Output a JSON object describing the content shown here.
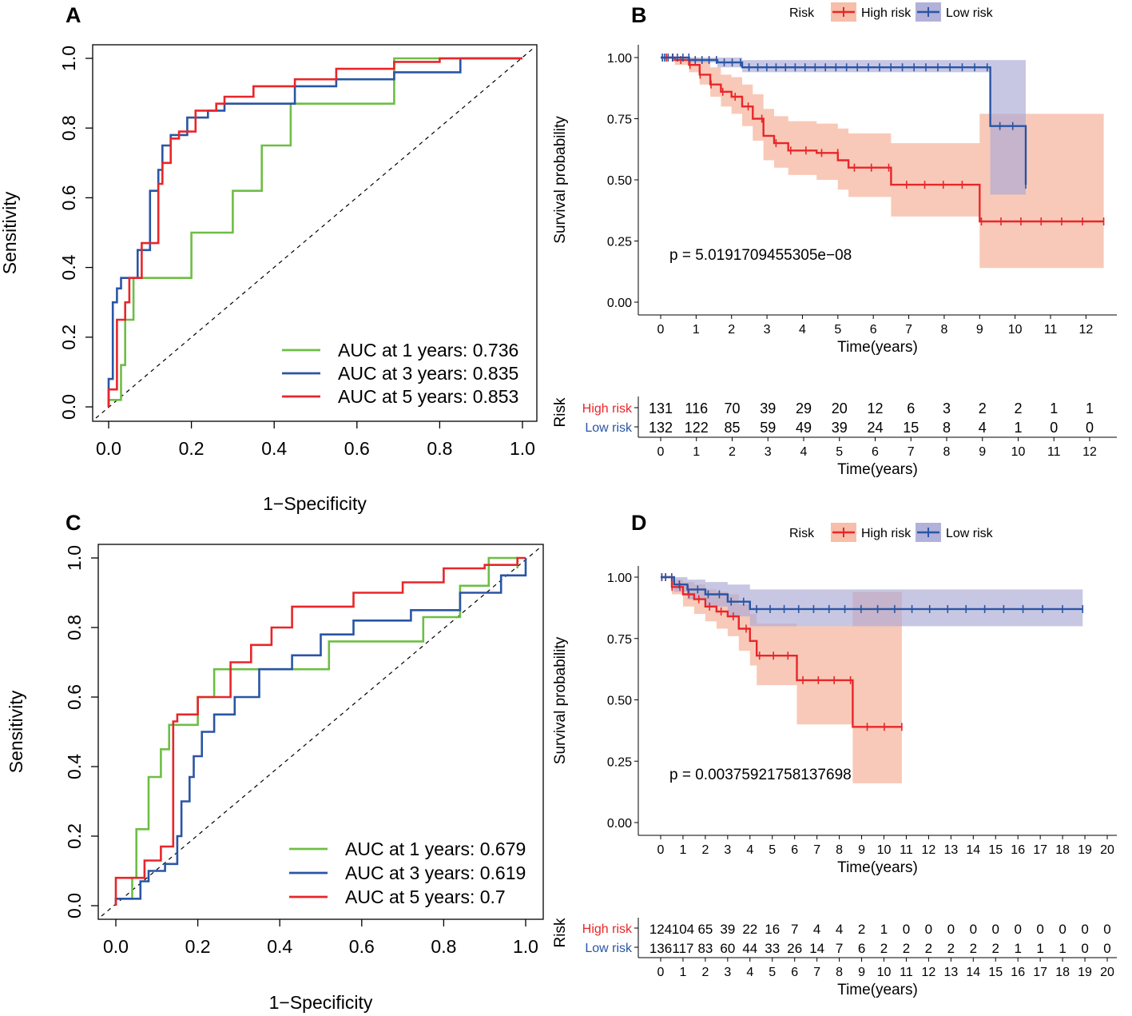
{
  "colors": {
    "green": "#6DBE45",
    "blue": "#2A55A4",
    "red": "#E8262A",
    "red_band": "#F6B7A0",
    "blue_band": "#A9A9D6",
    "black": "#000000"
  },
  "chart_data": [
    {
      "panel": "A",
      "type": "line",
      "xlabel": "1−Specificity",
      "ylabel": "Sensitivity",
      "xlim": [
        0,
        1
      ],
      "ylim": [
        0,
        1
      ],
      "xticks": [
        "0.0",
        "0.2",
        "0.4",
        "0.6",
        "0.8",
        "1.0"
      ],
      "yticks": [
        "0.0",
        "0.2",
        "0.4",
        "0.6",
        "0.8",
        "1.0"
      ],
      "legend_position": "bottom-right",
      "series": [
        {
          "name": "AUC at 1 years: 0.736",
          "color": "green",
          "x": [
            0,
            0,
            0.03,
            0.03,
            0.04,
            0.04,
            0.06,
            0.06,
            0.2,
            0.2,
            0.3,
            0.3,
            0.37,
            0.37,
            0.44,
            0.44,
            0.69,
            0.69,
            0.79,
            0.79,
            1
          ],
          "y": [
            0,
            0.02,
            0.02,
            0.12,
            0.12,
            0.25,
            0.25,
            0.37,
            0.37,
            0.5,
            0.5,
            0.62,
            0.62,
            0.75,
            0.75,
            0.87,
            0.87,
            1,
            1,
            1,
            1
          ]
        },
        {
          "name": "AUC at 3 years: 0.835",
          "color": "blue",
          "x": [
            0,
            0,
            0.01,
            0.01,
            0.02,
            0.02,
            0.03,
            0.03,
            0.07,
            0.07,
            0.1,
            0.1,
            0.12,
            0.12,
            0.13,
            0.13,
            0.15,
            0.15,
            0.19,
            0.19,
            0.24,
            0.24,
            0.28,
            0.28,
            0.33,
            0.33,
            0.45,
            0.45,
            0.55,
            0.55,
            0.69,
            0.69,
            0.85,
            0.85,
            1
          ],
          "y": [
            0,
            0.08,
            0.08,
            0.3,
            0.3,
            0.34,
            0.34,
            0.37,
            0.37,
            0.45,
            0.45,
            0.62,
            0.62,
            0.68,
            0.68,
            0.75,
            0.75,
            0.78,
            0.78,
            0.83,
            0.83,
            0.85,
            0.85,
            0.87,
            0.87,
            0.87,
            0.87,
            0.92,
            0.92,
            0.94,
            0.94,
            0.96,
            0.96,
            1,
            1
          ]
        },
        {
          "name": "AUC at 5 years: 0.853",
          "color": "red",
          "x": [
            0,
            0,
            0.02,
            0.02,
            0.04,
            0.04,
            0.05,
            0.05,
            0.08,
            0.08,
            0.12,
            0.12,
            0.13,
            0.13,
            0.15,
            0.15,
            0.17,
            0.17,
            0.21,
            0.21,
            0.26,
            0.26,
            0.28,
            0.28,
            0.35,
            0.35,
            0.45,
            0.45,
            0.55,
            0.55,
            0.69,
            0.69,
            0.8,
            0.8,
            1
          ],
          "y": [
            0,
            0.05,
            0.05,
            0.25,
            0.25,
            0.3,
            0.3,
            0.37,
            0.37,
            0.47,
            0.47,
            0.64,
            0.64,
            0.7,
            0.7,
            0.77,
            0.77,
            0.79,
            0.79,
            0.85,
            0.85,
            0.87,
            0.87,
            0.89,
            0.89,
            0.92,
            0.92,
            0.94,
            0.94,
            0.97,
            0.97,
            0.99,
            0.99,
            1,
            1
          ]
        }
      ]
    },
    {
      "panel": "B",
      "type": "line",
      "xlabel": "Time(years)",
      "ylabel": "Survival probability",
      "xlim": [
        0,
        12.6
      ],
      "ylim": [
        0,
        1
      ],
      "xticks": [
        "0",
        "1",
        "2",
        "3",
        "4",
        "5",
        "6",
        "7",
        "8",
        "9",
        "10",
        "11",
        "12"
      ],
      "yticks": [
        "0.00",
        "0.25",
        "0.50",
        "0.75",
        "1.00"
      ],
      "legend_title": "Risk",
      "legend_position": "top",
      "pvalue": "p = 5.0191709455305e−08",
      "series": [
        {
          "name": "High risk",
          "color": "red",
          "x": [
            0,
            0.4,
            0.8,
            1.1,
            1.4,
            1.7,
            2,
            2.3,
            2.6,
            2.9,
            3.2,
            3.6,
            4.4,
            5,
            5.3,
            6.5,
            9,
            12.5
          ],
          "y": [
            1,
            0.99,
            0.97,
            0.93,
            0.89,
            0.86,
            0.84,
            0.8,
            0.75,
            0.68,
            0.65,
            0.62,
            0.61,
            0.58,
            0.55,
            0.48,
            0.33,
            0.33
          ],
          "lower": [
            1,
            0.97,
            0.94,
            0.89,
            0.84,
            0.8,
            0.77,
            0.72,
            0.66,
            0.58,
            0.55,
            0.52,
            0.5,
            0.46,
            0.43,
            0.35,
            0.14,
            0.14
          ],
          "upper": [
            1,
            1,
            1,
            0.99,
            0.96,
            0.93,
            0.92,
            0.89,
            0.85,
            0.79,
            0.76,
            0.74,
            0.73,
            0.71,
            0.69,
            0.65,
            0.77,
            0.77
          ]
        },
        {
          "name": "Low risk",
          "color": "blue",
          "x": [
            0,
            0.8,
            1.6,
            2.3,
            9.1,
            9.3,
            10.3
          ],
          "y": [
            1,
            0.99,
            0.98,
            0.96,
            0.96,
            0.72,
            0.48
          ],
          "lower": [
            1,
            0.98,
            0.96,
            0.94,
            0.94,
            0.44,
            0.18
          ],
          "upper": [
            1,
            1,
            1,
            0.99,
            0.99,
            0.99,
            0.99
          ]
        }
      ]
    },
    {
      "panel": "B-risktable",
      "type": "table",
      "title": "Risk",
      "xlabel": "Time(years)",
      "xticks": [
        "0",
        "1",
        "2",
        "3",
        "4",
        "5",
        "6",
        "7",
        "8",
        "9",
        "10",
        "11",
        "12"
      ],
      "rows": [
        {
          "name": "High risk",
          "color": "red",
          "values": [
            "131",
            "116",
            "70",
            "39",
            "29",
            "20",
            "12",
            "6",
            "3",
            "2",
            "2",
            "1",
            "1"
          ]
        },
        {
          "name": "Low risk",
          "color": "blue",
          "values": [
            "132",
            "122",
            "85",
            "59",
            "49",
            "39",
            "24",
            "15",
            "8",
            "4",
            "1",
            "0",
            "0"
          ]
        }
      ]
    },
    {
      "panel": "C",
      "type": "line",
      "xlabel": "1−Specificity",
      "ylabel": "Sensitivity",
      "xlim": [
        0,
        1
      ],
      "ylim": [
        0,
        1
      ],
      "xticks": [
        "0.0",
        "0.2",
        "0.4",
        "0.6",
        "0.8",
        "1.0"
      ],
      "yticks": [
        "0.0",
        "0.2",
        "0.4",
        "0.6",
        "0.8",
        "1.0"
      ],
      "legend_position": "bottom-right",
      "series": [
        {
          "name": "AUC at 1 years: 0.679",
          "color": "green",
          "x": [
            0,
            0,
            0.04,
            0.04,
            0.05,
            0.05,
            0.08,
            0.08,
            0.11,
            0.11,
            0.13,
            0.13,
            0.2,
            0.2,
            0.24,
            0.24,
            0.52,
            0.52,
            0.75,
            0.75,
            0.84,
            0.84,
            0.91,
            0.91,
            0.98,
            0.98
          ],
          "y": [
            0,
            0.02,
            0.02,
            0.08,
            0.08,
            0.22,
            0.22,
            0.37,
            0.37,
            0.45,
            0.45,
            0.52,
            0.52,
            0.6,
            0.6,
            0.68,
            0.68,
            0.76,
            0.76,
            0.83,
            0.83,
            0.92,
            0.92,
            1,
            1,
            0.97
          ]
        },
        {
          "name": "AUC at 3 years: 0.619",
          "color": "blue",
          "x": [
            0,
            0,
            0.06,
            0.06,
            0.08,
            0.08,
            0.12,
            0.12,
            0.15,
            0.15,
            0.16,
            0.16,
            0.18,
            0.18,
            0.19,
            0.19,
            0.21,
            0.21,
            0.24,
            0.24,
            0.29,
            0.29,
            0.35,
            0.35,
            0.43,
            0.43,
            0.5,
            0.5,
            0.58,
            0.58,
            0.72,
            0.72,
            0.84,
            0.84,
            0.94,
            0.94,
            1,
            1
          ],
          "y": [
            0,
            0.02,
            0.02,
            0.07,
            0.07,
            0.1,
            0.1,
            0.12,
            0.12,
            0.2,
            0.2,
            0.3,
            0.3,
            0.37,
            0.37,
            0.43,
            0.43,
            0.5,
            0.5,
            0.55,
            0.55,
            0.6,
            0.6,
            0.68,
            0.68,
            0.72,
            0.72,
            0.78,
            0.78,
            0.82,
            0.82,
            0.85,
            0.85,
            0.9,
            0.9,
            0.95,
            0.95,
            1
          ]
        },
        {
          "name": "AUC at 5 years: 0.7",
          "color": "red",
          "x": [
            0,
            0,
            0.07,
            0.07,
            0.11,
            0.11,
            0.14,
            0.14,
            0.15,
            0.15,
            0.2,
            0.2,
            0.28,
            0.28,
            0.33,
            0.33,
            0.38,
            0.38,
            0.43,
            0.43,
            0.48,
            0.48,
            0.58,
            0.58,
            0.7,
            0.7,
            0.8,
            0.8,
            0.9,
            0.9,
            0.98,
            0.98,
            1
          ],
          "y": [
            0,
            0.08,
            0.08,
            0.13,
            0.13,
            0.17,
            0.17,
            0.53,
            0.53,
            0.55,
            0.55,
            0.6,
            0.6,
            0.7,
            0.7,
            0.75,
            0.75,
            0.8,
            0.8,
            0.86,
            0.86,
            0.86,
            0.86,
            0.9,
            0.9,
            0.93,
            0.93,
            0.97,
            0.97,
            0.98,
            0.98,
            1,
            1
          ]
        }
      ]
    },
    {
      "panel": "D",
      "type": "line",
      "xlabel": "Time(years)",
      "ylabel": "Survival probability",
      "xlim": [
        0,
        20
      ],
      "ylim": [
        0,
        1
      ],
      "xticks": [
        "0",
        "1",
        "2",
        "3",
        "4",
        "5",
        "6",
        "7",
        "8",
        "9",
        "10",
        "11",
        "12",
        "13",
        "14",
        "15",
        "16",
        "17",
        "18",
        "19",
        "20"
      ],
      "yticks": [
        "0.00",
        "0.25",
        "0.50",
        "0.75",
        "1.00"
      ],
      "legend_title": "Risk",
      "legend_position": "top",
      "pvalue": "p = 0.00375921758137698",
      "series": [
        {
          "name": "High risk",
          "color": "red",
          "x": [
            0,
            0.5,
            1,
            1.5,
            2,
            2.5,
            3,
            3.5,
            4,
            4.3,
            6.1,
            8.6,
            10.8
          ],
          "y": [
            1,
            0.96,
            0.93,
            0.91,
            0.88,
            0.86,
            0.84,
            0.79,
            0.74,
            0.68,
            0.58,
            0.39,
            0.39
          ],
          "lower": [
            1,
            0.93,
            0.88,
            0.85,
            0.82,
            0.79,
            0.76,
            0.7,
            0.64,
            0.56,
            0.4,
            0.16,
            0.16
          ],
          "upper": [
            1,
            0.99,
            0.98,
            0.97,
            0.95,
            0.94,
            0.93,
            0.89,
            0.85,
            0.81,
            0.8,
            0.94,
            0.94
          ]
        },
        {
          "name": "Low risk",
          "color": "blue",
          "x": [
            0,
            0.6,
            1.2,
            2,
            3,
            4,
            18.9
          ],
          "y": [
            1,
            0.97,
            0.95,
            0.93,
            0.9,
            0.87,
            0.87
          ],
          "lower": [
            1,
            0.94,
            0.91,
            0.88,
            0.84,
            0.8,
            0.8
          ],
          "upper": [
            1,
            1,
            0.99,
            0.98,
            0.97,
            0.95,
            0.95
          ]
        }
      ]
    },
    {
      "panel": "D-risktable",
      "type": "table",
      "title": "Risk",
      "xlabel": "Time(years)",
      "xticks": [
        "0",
        "1",
        "2",
        "3",
        "4",
        "5",
        "6",
        "7",
        "8",
        "9",
        "10",
        "11",
        "12",
        "13",
        "14",
        "15",
        "16",
        "17",
        "18",
        "19",
        "20"
      ],
      "rows": [
        {
          "name": "High risk",
          "color": "red",
          "values": [
            "124",
            "104",
            "65",
            "39",
            "22",
            "16",
            "7",
            "4",
            "4",
            "2",
            "1",
            "0",
            "0",
            "0",
            "0",
            "0",
            "0",
            "0",
            "0",
            "0",
            "0"
          ]
        },
        {
          "name": "Low risk",
          "color": "blue",
          "values": [
            "136",
            "117",
            "83",
            "60",
            "44",
            "33",
            "26",
            "14",
            "7",
            "6",
            "2",
            "2",
            "2",
            "2",
            "2",
            "2",
            "1",
            "1",
            "1",
            "0",
            "0"
          ]
        }
      ]
    }
  ]
}
